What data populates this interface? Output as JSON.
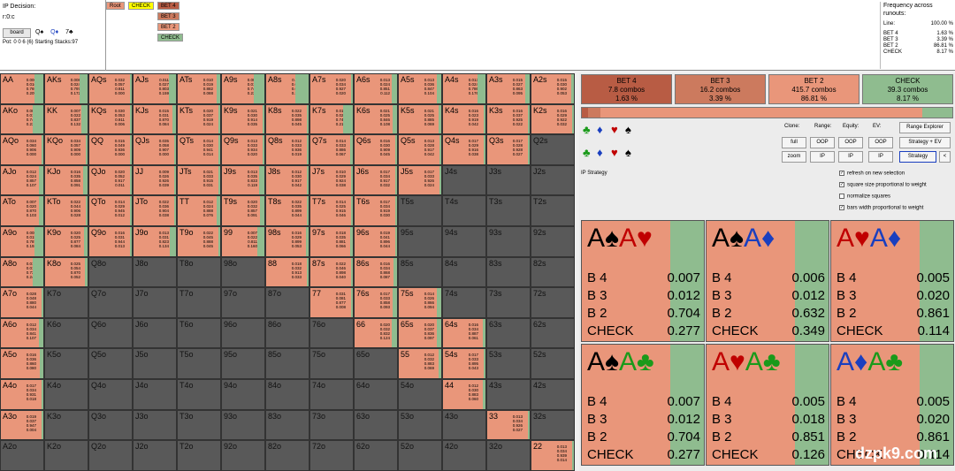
{
  "header": {
    "ip_decision_label": "IP Decision:",
    "board_code": "r:0:c",
    "board_button": "board",
    "board_cards": [
      "Q♠",
      "Q♦",
      "7♣"
    ],
    "pot_line": "Pot: 0 0 6 (6) Starting Stacks:97"
  },
  "tree": {
    "root": "Root",
    "check": "CHECK",
    "bet4": "BET 4",
    "bet3": "BET 3",
    "bet2": "BET 2",
    "check2": "CHECK"
  },
  "frequency": {
    "title": "Frequency across runouts:",
    "line_label": "Line:",
    "line_value": "100.00 %",
    "rows": [
      {
        "label": "BET 4",
        "value": "1.63 %"
      },
      {
        "label": "BET 3",
        "value": "3.39 %"
      },
      {
        "label": "BET 2",
        "value": "86.81 %"
      },
      {
        "label": "CHECK",
        "value": "8.17 %"
      }
    ]
  },
  "actions": [
    {
      "name": "BET 4",
      "combos": "7.8 combos",
      "pct": "1.63 %",
      "color": "#b85c44"
    },
    {
      "name": "BET 3",
      "combos": "16.2 combos",
      "pct": "3.39 %",
      "color": "#cc7a5e"
    },
    {
      "name": "BET 2",
      "combos": "415.7 combos",
      "pct": "86.81 %",
      "color": "#e9967a"
    },
    {
      "name": "CHECK",
      "combos": "39.3 combos",
      "pct": "8.17 %",
      "color": "#8fbc8f"
    }
  ],
  "controls": {
    "clone": "Clone:",
    "range": "Range:",
    "equity": "Equity:",
    "ev": "EV:",
    "full": "full",
    "zoom": "zoom",
    "oop": "OOP",
    "ip": "IP",
    "range_explorer": "Range Explorer",
    "strategy_ev": "Strategy + EV",
    "strategy": "Strategy",
    "back": "<",
    "ip_strategy": "IP Strategy",
    "checks": [
      {
        "label": "refresh on new selection",
        "checked": true
      },
      {
        "label": "square size proportional to weight",
        "checked": true
      },
      {
        "label": "normalize squares",
        "checked": false
      },
      {
        "label": "bars width proportional to weight",
        "checked": true
      }
    ]
  },
  "runouts": [
    {
      "c1": "A♠",
      "c2": "A♥",
      "b4": "0.007",
      "b3": "0.012",
      "b2": "0.704",
      "ck": "0.277"
    },
    {
      "c1": "A♠",
      "c2": "A♦",
      "b4": "0.006",
      "b3": "0.012",
      "b2": "0.632",
      "ck": "0.349"
    },
    {
      "c1": "A♥",
      "c2": "A♦",
      "b4": "0.005",
      "b3": "0.020",
      "b2": "0.861",
      "ck": "0.114"
    },
    {
      "c1": "A♠",
      "c2": "A♣",
      "b4": "0.007",
      "b3": "0.012",
      "b2": "0.704",
      "ck": "0.277"
    },
    {
      "c1": "A♥",
      "c2": "A♣",
      "b4": "0.005",
      "b3": "0.018",
      "b2": "0.851",
      "ck": "0.126"
    },
    {
      "c1": "A♦",
      "c2": "A♣",
      "b4": "0.005",
      "b3": "0.020",
      "b2": "0.861",
      "ck": "0.114"
    }
  ],
  "labels": {
    "b4": "B 4",
    "b3": "B 3",
    "b2": "B 2",
    "ck": "CHECK"
  },
  "grid": {
    "ranks": [
      "A",
      "K",
      "Q",
      "J",
      "T",
      "9",
      "8",
      "7",
      "6",
      "5",
      "4",
      "3",
      "2"
    ],
    "values": {
      "AA": [
        "0.006",
        "0.016",
        "0.769",
        "0.209"
      ],
      "AKs": [
        "0.008",
        "0.024",
        "0.797",
        "0.172"
      ],
      "AQs": [
        "0.032",
        "0.057",
        "0.911",
        "0.000"
      ],
      "AJs": [
        "0.011",
        "0.027",
        "0.803",
        "0.159"
      ],
      "ATs": [
        "0.010",
        "0.019",
        "0.882",
        "0.088"
      ],
      "A9s": [
        "0.009",
        "0.013",
        "0.747",
        "0.231"
      ],
      "A8s": [
        "0.011",
        "0.015",
        "0.665",
        "0.309"
      ],
      "A7s": [
        "0.020",
        "0.034",
        "0.927",
        "0.020"
      ],
      "A6s": [
        "0.013",
        "0.024",
        "0.851",
        "0.112"
      ],
      "A5s": [
        "0.013",
        "0.036",
        "0.847",
        "0.104"
      ],
      "A4s": [
        "0.013",
        "0.024",
        "0.786",
        "0.176"
      ],
      "A3s": [
        "0.015",
        "0.027",
        "0.863",
        "0.095"
      ],
      "A2s": [
        "0.015",
        "0.030",
        "0.902",
        "0.053"
      ],
      "AKo": [
        "0.009",
        "0.016",
        "0.744",
        "0.231"
      ],
      "KK": [
        "0.007",
        "0.022",
        "0.837",
        "0.132"
      ],
      "KQs": [
        "0.030",
        "0.053",
        "0.911",
        "0.006"
      ],
      "KJs": [
        "0.015",
        "0.031",
        "0.870",
        "0.084"
      ],
      "KTs": [
        "0.020",
        "0.037",
        "0.919",
        "0.024"
      ],
      "K9s": [
        "0.021",
        "0.030",
        "0.914",
        "0.035"
      ],
      "K8s": [
        "0.022",
        "0.035",
        "0.898",
        "0.045"
      ],
      "K7s": [
        "0.019",
        "0.025",
        "0.742",
        "0.213"
      ],
      "K6s": [
        "0.021",
        "0.025",
        "0.846",
        "0.108"
      ],
      "K5s": [
        "0.021",
        "0.025",
        "0.885",
        "0.069"
      ],
      "K4s": [
        "0.016",
        "0.023",
        "0.919",
        "0.042"
      ],
      "K3s": [
        "0.016",
        "0.037",
        "0.925",
        "0.022"
      ],
      "K2s": [
        "0.016",
        "0.029",
        "0.922",
        "0.032"
      ],
      "AQo": [
        "0.034",
        "0.060",
        "0.906",
        "0.000"
      ],
      "KQo": [
        "0.034",
        "0.057",
        "0.909",
        "0.000"
      ],
      "QQ": [
        "0.015",
        "0.049",
        "0.936",
        "0.000"
      ],
      "QJs": [
        "0.035",
        "0.058",
        "0.907",
        "0.000"
      ],
      "QTs": [
        "0.014",
        "0.030",
        "0.941",
        "0.014"
      ],
      "Q9s": [
        "0.013",
        "0.033",
        "0.934",
        "0.020"
      ],
      "Q8s": [
        "0.012",
        "0.033",
        "0.936",
        "0.019"
      ],
      "Q7s": [
        "0.014",
        "0.033",
        "0.886",
        "0.067"
      ],
      "Q6s": [
        "0.016",
        "0.030",
        "0.909",
        "0.045"
      ],
      "Q5s": [
        "0.013",
        "0.028",
        "0.917",
        "0.042"
      ],
      "Q4s": [
        "0.017",
        "0.029",
        "0.916",
        "0.038"
      ],
      "Q3s": [
        "0.017",
        "0.028",
        "0.928",
        "0.027"
      ],
      "AJo": [
        "0.012",
        "0.024",
        "0.857",
        "0.107"
      ],
      "KJo": [
        "0.016",
        "0.035",
        "0.858",
        "0.091"
      ],
      "QJo": [
        "0.020",
        "0.052",
        "0.917",
        "0.011"
      ],
      "JJ": [
        "0.009",
        "0.026",
        "0.926",
        "0.039"
      ],
      "JTs": [
        "0.021",
        "0.033",
        "0.915",
        "0.031"
      ],
      "J9s": [
        "0.013",
        "0.035",
        "0.833",
        "0.119"
      ],
      "J8s": [
        "0.012",
        "0.030",
        "0.917",
        "0.042"
      ],
      "J7s": [
        "0.010",
        "0.029",
        "0.924",
        "0.038"
      ],
      "J6s": [
        "0.017",
        "0.034",
        "0.917",
        "0.032"
      ],
      "J5s": [
        "0.017",
        "0.033",
        "0.926",
        "0.024"
      ],
      "ATo": [
        "0.007",
        "0.020",
        "0.870",
        "0.103"
      ],
      "KTo": [
        "0.022",
        "0.044",
        "0.906",
        "0.028"
      ],
      "QTo": [
        "0.014",
        "0.029",
        "0.945",
        "0.012"
      ],
      "JTo": [
        "0.022",
        "0.036",
        "0.904",
        "0.038"
      ],
      "TT": [
        "0.012",
        "0.024",
        "0.888",
        "0.076"
      ],
      "T9s": [
        "0.020",
        "0.032",
        "0.857",
        "0.091"
      ],
      "T8s": [
        "0.022",
        "0.035",
        "0.899",
        "0.044"
      ],
      "T7s": [
        "0.014",
        "0.025",
        "0.915",
        "0.046"
      ],
      "T6s": [
        "0.017",
        "0.034",
        "0.919",
        "0.030"
      ],
      "A9o": [
        "0.008",
        "0.015",
        "0.787",
        "0.192"
      ],
      "K9o": [
        "0.020",
        "0.025",
        "0.877",
        "0.084"
      ],
      "Q9o": [
        "0.016",
        "0.031",
        "0.944",
        "0.013"
      ],
      "J9o": [
        "0.013",
        "0.031",
        "0.823",
        "0.134"
      ],
      "T9o": [
        "0.022",
        "0.045",
        "0.888",
        "0.045"
      ],
      "99": [
        "0.007",
        "0.022",
        "0.811",
        "0.160"
      ],
      "98s": [
        "0.016",
        "0.029",
        "0.899",
        "0.053"
      ],
      "97s": [
        "0.018",
        "0.035",
        "0.881",
        "0.066"
      ],
      "96s": [
        "0.019",
        "0.041",
        "0.896",
        "0.044"
      ],
      "A8o": [
        "0.010",
        "0.013",
        "0.733",
        "0.243"
      ],
      "K8o": [
        "0.025",
        "0.054",
        "0.870",
        "0.052"
      ],
      "88": [
        "0.018",
        "0.032",
        "0.913",
        "0.033"
      ],
      "87s": [
        "0.022",
        "0.046",
        "0.898",
        "0.040"
      ],
      "86s": [
        "0.016",
        "0.034",
        "0.868",
        "0.087"
      ],
      "A7o": [
        "0.028",
        "0.048",
        "0.880",
        "0.044"
      ],
      "77": [
        "0.031",
        "0.081",
        "0.877",
        "0.008"
      ],
      "76s": [
        "0.017",
        "0.033",
        "0.858",
        "0.093"
      ],
      "75s": [
        "0.014",
        "0.026",
        "0.866",
        "0.094"
      ],
      "A6o": [
        "0.012",
        "0.034",
        "0.841",
        "0.107"
      ],
      "66": [
        "0.020",
        "0.032",
        "0.832",
        "0.124"
      ],
      "65s": [
        "0.020",
        "0.037",
        "0.836",
        "0.097"
      ],
      "64s": [
        "0.016",
        "0.034",
        "0.887",
        "0.061"
      ],
      "A5o": [
        "0.016",
        "0.036",
        "0.860",
        "0.080"
      ],
      "55": [
        "0.012",
        "0.032",
        "0.883",
        "0.069"
      ],
      "54s": [
        "0.017",
        "0.033",
        "0.895",
        "0.043"
      ],
      "A4o": [
        "0.017",
        "0.034",
        "0.931",
        "0.018"
      ],
      "44": [
        "0.012",
        "0.030",
        "0.883",
        "0.060"
      ],
      "A3o": [
        "0.019",
        "0.037",
        "0.947",
        "0.004"
      ],
      "33": [
        "0.013",
        "0.034",
        "0.926",
        "0.027"
      ],
      "22": [
        "0.013",
        "0.034",
        "0.939",
        "0.014"
      ]
    }
  },
  "watermark": "dzpk9.com"
}
